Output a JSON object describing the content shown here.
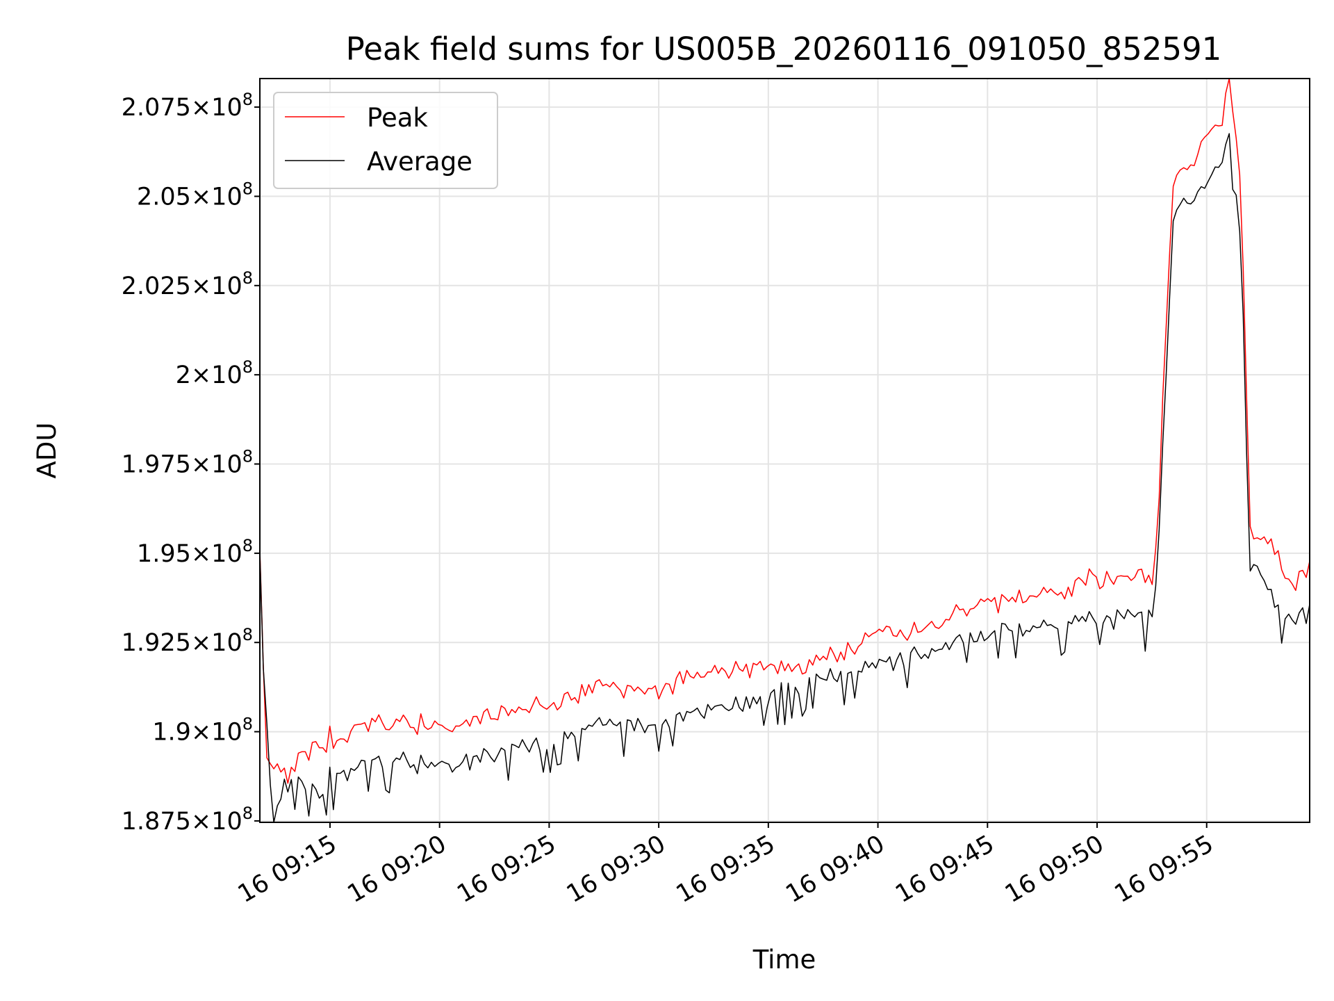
{
  "chart_data": {
    "type": "line",
    "title": "Peak field sums for US005B_20260116_091050_852591",
    "xlabel": "Time",
    "ylabel": "ADU",
    "xlim_minutes": [
      11.8,
      59.7
    ],
    "ylim": [
      187460000,
      208300000
    ],
    "x_ticks": [
      {
        "t": 15,
        "label": "16 09:15"
      },
      {
        "t": 20,
        "label": "16 09:20"
      },
      {
        "t": 25,
        "label": "16 09:25"
      },
      {
        "t": 30,
        "label": "16 09:30"
      },
      {
        "t": 35,
        "label": "16 09:35"
      },
      {
        "t": 40,
        "label": "16 09:40"
      },
      {
        "t": 45,
        "label": "16 09:45"
      },
      {
        "t": 50,
        "label": "16 09:50"
      },
      {
        "t": 55,
        "label": "16 09:55"
      }
    ],
    "y_ticks": [
      {
        "v": 187500000,
        "mant": "1.875"
      },
      {
        "v": 190000000,
        "mant": "1.9"
      },
      {
        "v": 192500000,
        "mant": "1.925"
      },
      {
        "v": 195000000,
        "mant": "1.95"
      },
      {
        "v": 197500000,
        "mant": "1.975"
      },
      {
        "v": 200000000,
        "mant": "2"
      },
      {
        "v": 202500000,
        "mant": "2.025"
      },
      {
        "v": 205000000,
        "mant": "2.05"
      },
      {
        "v": 207500000,
        "mant": "2.075"
      }
    ],
    "y_tick_base": "10",
    "y_tick_exp": "8",
    "grid": true,
    "legend_position": "upper-left",
    "series": [
      {
        "name": "Peak",
        "color": "#ff0000",
        "key_points": [
          [
            11.8,
            195.1
          ],
          [
            12.1,
            189.1
          ],
          [
            12.4,
            189.3
          ],
          [
            12.7,
            188.9
          ],
          [
            13.0,
            188.8
          ],
          [
            14.0,
            189.5
          ],
          [
            15.0,
            189.8
          ],
          [
            16.0,
            190.0
          ],
          [
            18.0,
            190.3
          ],
          [
            20.0,
            190.1
          ],
          [
            23.0,
            190.5
          ],
          [
            25.0,
            190.8
          ],
          [
            27.0,
            191.3
          ],
          [
            30.0,
            191.2
          ],
          [
            32.0,
            191.6
          ],
          [
            34.0,
            191.7
          ],
          [
            35.0,
            191.8
          ],
          [
            37.0,
            191.9
          ],
          [
            40.0,
            192.7
          ],
          [
            42.0,
            192.9
          ],
          [
            44.0,
            193.5
          ],
          [
            46.0,
            193.7
          ],
          [
            48.0,
            193.9
          ],
          [
            50.0,
            194.3
          ],
          [
            52.5,
            194.3
          ],
          [
            52.8,
            196.0
          ],
          [
            53.1,
            201.0
          ],
          [
            53.5,
            205.5
          ],
          [
            54.0,
            205.6
          ],
          [
            55.0,
            206.7
          ],
          [
            55.7,
            207.1
          ],
          [
            56.0,
            208.2
          ],
          [
            56.3,
            207.0
          ],
          [
            56.6,
            204.5
          ],
          [
            57.0,
            195.6
          ],
          [
            58.0,
            195.2
          ],
          [
            59.0,
            194.1
          ],
          [
            59.7,
            194.5
          ]
        ]
      },
      {
        "name": "Average",
        "color": "#000000",
        "key_points": [
          [
            11.8,
            195.0
          ],
          [
            12.2,
            188.9
          ],
          [
            12.5,
            187.6
          ],
          [
            12.9,
            188.4
          ],
          [
            13.5,
            188.6
          ],
          [
            14.5,
            188.2
          ],
          [
            15.0,
            188.7
          ],
          [
            16.0,
            188.9
          ],
          [
            18.0,
            189.2
          ],
          [
            20.0,
            189.0
          ],
          [
            23.0,
            189.4
          ],
          [
            25.0,
            189.7
          ],
          [
            27.0,
            190.2
          ],
          [
            30.0,
            190.2
          ],
          [
            32.0,
            190.5
          ],
          [
            34.0,
            190.7
          ],
          [
            35.0,
            190.9
          ],
          [
            37.0,
            191.4
          ],
          [
            40.0,
            191.8
          ],
          [
            42.0,
            192.2
          ],
          [
            44.0,
            192.6
          ],
          [
            46.0,
            192.8
          ],
          [
            48.0,
            193.0
          ],
          [
            50.0,
            193.1
          ],
          [
            52.5,
            193.2
          ],
          [
            52.8,
            195.0
          ],
          [
            53.1,
            199.5
          ],
          [
            53.5,
            204.5
          ],
          [
            54.0,
            204.7
          ],
          [
            55.0,
            205.3
          ],
          [
            55.7,
            206.1
          ],
          [
            56.0,
            206.6
          ],
          [
            56.3,
            205.5
          ],
          [
            56.6,
            203.0
          ],
          [
            57.0,
            195.0
          ],
          [
            58.0,
            193.6
          ],
          [
            59.0,
            193.1
          ],
          [
            59.7,
            193.4
          ]
        ]
      }
    ],
    "value_unit_note": "key_points y values are in units of 1e6 ADU"
  }
}
